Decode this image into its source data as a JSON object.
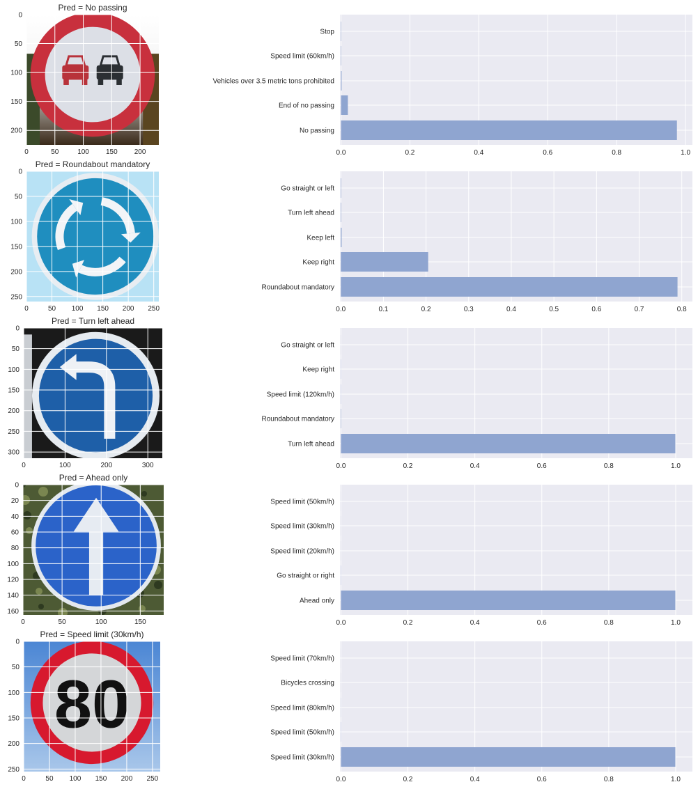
{
  "rows": [
    {
      "image": {
        "title": "Pred = No passing",
        "sign": "no-passing",
        "width": 233,
        "height": 225,
        "xticks": [
          0,
          50,
          100,
          150,
          200
        ],
        "yticks": [
          0,
          50,
          100,
          150,
          200
        ],
        "colors": {
          "ring": "#c8303d",
          "face": "#dcdfe6",
          "car_left": "#b8323a",
          "car_right": "#2b2f33",
          "bg_top": "#ffffff",
          "bg_bottom": "#3a2a1a"
        }
      },
      "chart_data": {
        "type": "bar",
        "orientation": "horizontal",
        "categories": [
          "No passing",
          "End of no passing",
          "Vehicles over 3.5 metric tons prohibited",
          "Speed limit (60km/h)",
          "Stop"
        ],
        "values": [
          0.975,
          0.02,
          0.002,
          0.001,
          0.001
        ],
        "xlim": [
          -0.003,
          1.02
        ],
        "xticks": [
          0.0,
          0.2,
          0.4,
          0.6,
          0.8,
          1.0
        ],
        "xtick_labels": [
          "0.0",
          "0.2",
          "0.4",
          "0.6",
          "0.8",
          "1.0"
        ]
      }
    },
    {
      "image": {
        "title": "Pred = Roundabout mandatory",
        "sign": "roundabout",
        "width": 260,
        "height": 260,
        "xticks": [
          0,
          50,
          100,
          150,
          200,
          250
        ],
        "yticks": [
          0,
          50,
          100,
          150,
          200,
          250
        ],
        "colors": {
          "face": "#1f8ebf",
          "rim": "#e8edf2",
          "arrow": "#f2f4f7",
          "bg": "#b8e2f5"
        }
      },
      "chart_data": {
        "type": "bar",
        "orientation": "horizontal",
        "categories": [
          "Roundabout mandatory",
          "Keep right",
          "Keep left",
          "Turn left ahead",
          "Go straight or left"
        ],
        "values": [
          0.79,
          0.205,
          0.002,
          0.001,
          0.001
        ],
        "xlim": [
          -0.002,
          0.825
        ],
        "xticks": [
          0.0,
          0.1,
          0.2,
          0.3,
          0.4,
          0.5,
          0.6,
          0.7,
          0.8
        ],
        "xtick_labels": [
          "0.0",
          "0.1",
          "0.2",
          "0.3",
          "0.4",
          "0.5",
          "0.6",
          "0.7",
          "0.8"
        ]
      }
    },
    {
      "image": {
        "title": "Pred = Turn left ahead",
        "sign": "turn-left",
        "width": 335,
        "height": 315,
        "xticks": [
          0,
          100,
          200,
          300
        ],
        "yticks": [
          0,
          50,
          100,
          150,
          200,
          250,
          300
        ],
        "colors": {
          "face": "#1e5fa8",
          "rim": "#e6ebf0",
          "arrow": "#eef1f5",
          "bg": "#1a1a1a",
          "pole": "#c9cdd2"
        }
      },
      "chart_data": {
        "type": "bar",
        "orientation": "horizontal",
        "categories": [
          "Turn left ahead",
          "Roundabout mandatory",
          "Speed limit (120km/h)",
          "Keep right",
          "Go straight or left"
        ],
        "values": [
          0.999,
          0.001,
          0.0005,
          0.0005,
          0.0002
        ],
        "xlim": [
          -0.003,
          1.05
        ],
        "xticks": [
          0.0,
          0.2,
          0.4,
          0.6,
          0.8,
          1.0
        ],
        "xtick_labels": [
          "0.0",
          "0.2",
          "0.4",
          "0.6",
          "0.8",
          "1.0"
        ]
      }
    },
    {
      "image": {
        "title": "Pred = Ahead only",
        "sign": "ahead-only",
        "width": 180,
        "height": 165,
        "xticks": [
          0,
          50,
          100,
          150
        ],
        "yticks": [
          0,
          20,
          40,
          60,
          80,
          100,
          120,
          140,
          160
        ],
        "colors": {
          "face": "#2b63c9",
          "rim": "#e3e8ee",
          "arrow": "#e6ebf2",
          "bg": "#4d5a34"
        }
      },
      "chart_data": {
        "type": "bar",
        "orientation": "horizontal",
        "categories": [
          "Ahead only",
          "Go straight or right",
          "Speed limit (20km/h)",
          "Speed limit (30km/h)",
          "Speed limit (50km/h)"
        ],
        "values": [
          0.999,
          0.0005,
          0.0002,
          0.0002,
          0.0001
        ],
        "xlim": [
          -0.003,
          1.05
        ],
        "xticks": [
          0.0,
          0.2,
          0.4,
          0.6,
          0.8,
          1.0
        ],
        "xtick_labels": [
          "0.0",
          "0.2",
          "0.4",
          "0.6",
          "0.8",
          "1.0"
        ]
      }
    },
    {
      "image": {
        "title": "Pred = Speed limit (30km/h)",
        "sign": "speed-limit",
        "sign_text": "80",
        "width": 265,
        "height": 255,
        "xticks": [
          0,
          50,
          100,
          150,
          200,
          250
        ],
        "yticks": [
          0,
          50,
          100,
          150,
          200,
          250
        ],
        "colors": {
          "ring": "#d7192e",
          "face": "#d4d6d8",
          "digits": "#111111",
          "bg_top": "#4b86d4",
          "bg_bottom": "#a9c7ea"
        }
      },
      "chart_data": {
        "type": "bar",
        "orientation": "horizontal",
        "categories": [
          "Speed limit (30km/h)",
          "Speed limit (50km/h)",
          "Speed limit (80km/h)",
          "Bicycles crossing",
          "Speed limit (70km/h)"
        ],
        "values": [
          0.999,
          0.0005,
          0.0003,
          0.0002,
          0.0001
        ],
        "xlim": [
          -0.003,
          1.05
        ],
        "xticks": [
          0.0,
          0.2,
          0.4,
          0.6,
          0.8,
          1.0
        ],
        "xtick_labels": [
          "0.0",
          "0.2",
          "0.4",
          "0.6",
          "0.8",
          "1.0"
        ]
      }
    }
  ],
  "style": {
    "axes_bg": "#eaeaf2",
    "grid": "#ffffff",
    "bar": "#8fa5d0",
    "text": "#262626"
  }
}
